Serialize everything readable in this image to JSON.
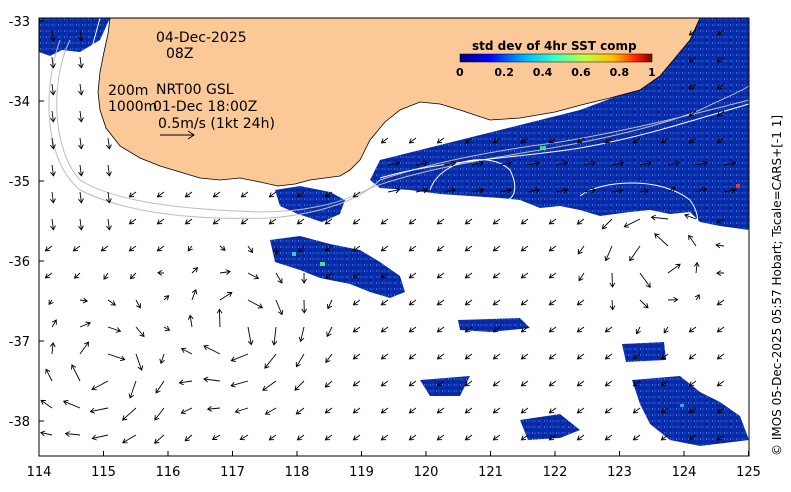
{
  "date_line": "04-Dec-2025",
  "hour_line": "08Z",
  "isobath_label_200": "200m",
  "isobath_label_1000": "1000m",
  "product_line": "NRT00 GSL",
  "product_time": "01-Dec 18:00Z",
  "vector_scale_label": "0.5m/s (1kt 24h)",
  "colorbar": {
    "title": "std dev of 4hr SST comp",
    "ticks": [
      "0",
      "0.2",
      "0.4",
      "0.6",
      "0.8",
      "1"
    ]
  },
  "credit": "© IMOS 05-Dec-2025 05:57 Hobart; Tscale=CARS+[-1 1]",
  "axes": {
    "x_ticks": [
      "114",
      "115",
      "116",
      "117",
      "118",
      "119",
      "120",
      "121",
      "122",
      "123",
      "124",
      "125"
    ],
    "y_ticks": [
      "-33",
      "-34",
      "-35",
      "-36",
      "-37",
      "-38"
    ]
  },
  "colors": {
    "land": "#fbc898",
    "sst_field": "#0d2fb0",
    "ocean_blank": "#ffffff",
    "isobath": "#bdbdbd"
  }
}
